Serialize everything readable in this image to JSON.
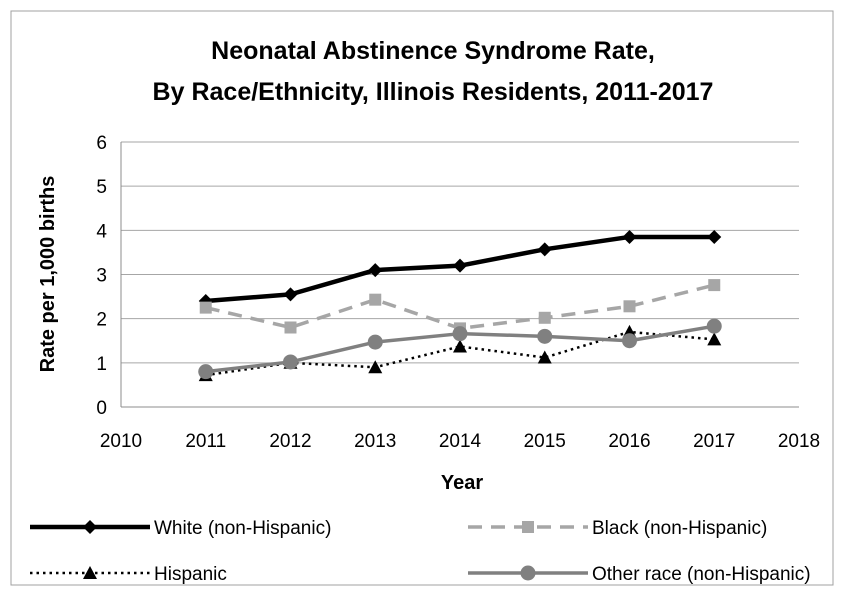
{
  "chart_data": {
    "type": "line",
    "title": [
      "Neonatal Abstinence Syndrome Rate,",
      "By Race/Ethnicity, Illinois Residents, 2011-2017"
    ],
    "xlabel": "Year",
    "ylabel": "Rate per 1,000 births",
    "xlim": [
      2010,
      2018
    ],
    "ylim": [
      0,
      6
    ],
    "x_ticks": [
      "2010",
      "2011",
      "2012",
      "2013",
      "2014",
      "2015",
      "2016",
      "2017",
      "2018"
    ],
    "y_ticks": [
      "0",
      "1",
      "2",
      "3",
      "4",
      "5",
      "6"
    ],
    "grid": true,
    "legend_position": "bottom",
    "x": [
      2011,
      2012,
      2013,
      2014,
      2015,
      2016,
      2017
    ],
    "series": [
      {
        "name": "White (non-Hispanic)",
        "values": [
          2.4,
          2.55,
          3.1,
          3.2,
          3.57,
          3.85,
          3.85
        ],
        "color": "#000000",
        "line": "solid",
        "marker": "diamond"
      },
      {
        "name": "Black (non-Hispanic)",
        "values": [
          2.25,
          1.8,
          2.43,
          1.78,
          2.02,
          2.28,
          2.76
        ],
        "color": "#a6a6a6",
        "line": "dashed",
        "marker": "square"
      },
      {
        "name": "Hispanic",
        "values": [
          0.72,
          1.0,
          0.9,
          1.37,
          1.12,
          1.7,
          1.53
        ],
        "color": "#000000",
        "line": "dotted",
        "marker": "triangle"
      },
      {
        "name": "Other race (non-Hispanic)",
        "values": [
          0.8,
          1.02,
          1.47,
          1.66,
          1.6,
          1.5,
          1.83
        ],
        "color": "#808080",
        "line": "solid",
        "marker": "circle"
      }
    ]
  }
}
